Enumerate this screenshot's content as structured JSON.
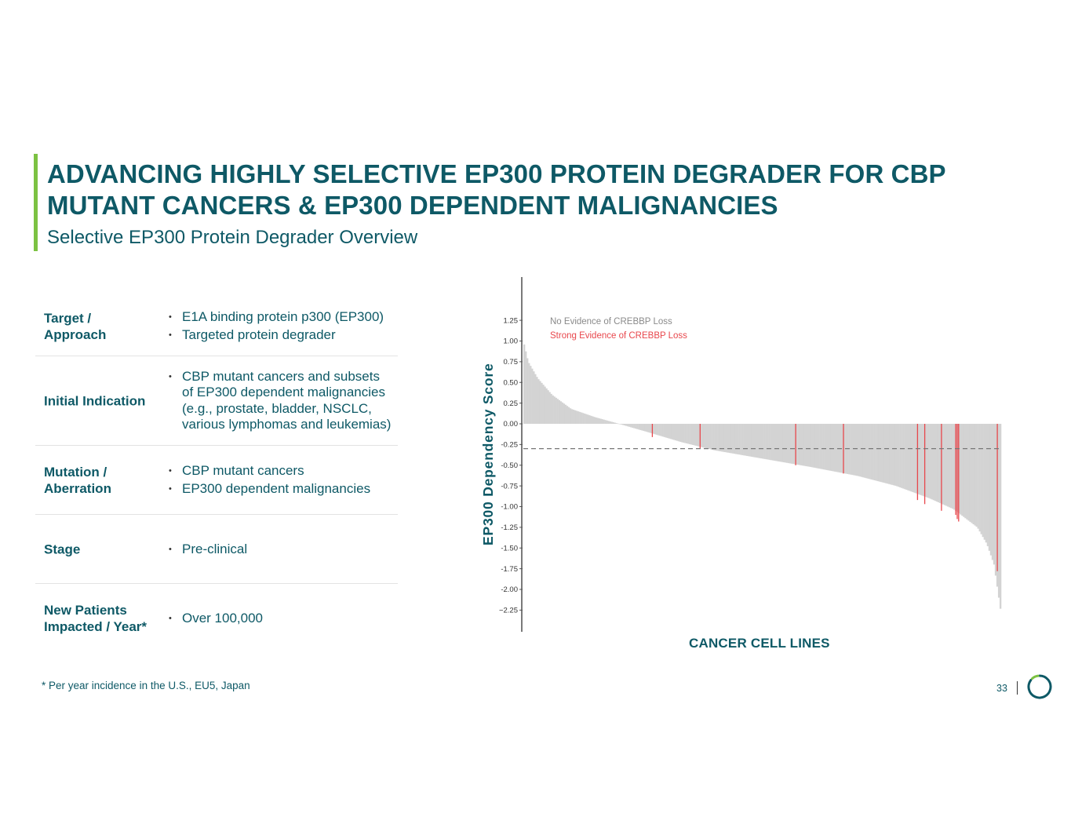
{
  "header": {
    "title": "ADVANCING HIGHLY SELECTIVE EP300 PROTEIN DEGRADER FOR CBP MUTANT CANCERS & EP300 DEPENDENT MALIGNANCIES",
    "subtitle": "Selective EP300 Protein Degrader Overview"
  },
  "colors": {
    "brand": "#0e5966",
    "accent": "#7cc242",
    "bar_default": "#d3d3d3",
    "bar_highlight": "#e8474c"
  },
  "table": {
    "rows": [
      {
        "label": "Target /\nApproach",
        "bullets": [
          "E1A binding protein p300 (EP300)",
          "Targeted protein degrader"
        ]
      },
      {
        "label": "Initial Indication",
        "bullets": [
          "CBP mutant cancers and subsets of EP300 dependent malignancies (e.g., prostate, bladder, NSCLC, various lymphomas and leukemias)"
        ]
      },
      {
        "label": "Mutation /\nAberration",
        "bullets": [
          "CBP mutant cancers",
          "EP300 dependent malignancies"
        ]
      },
      {
        "label": "Stage",
        "bullets": [
          "Pre-clinical"
        ]
      },
      {
        "label": "New Patients\nImpacted / Year*",
        "bullets": [
          "Over 100,000"
        ]
      }
    ]
  },
  "footnote": "* Per year incidence in the U.S., EU5, Japan",
  "page_number": "33",
  "chart_data": {
    "type": "bar",
    "ylabel": "EP300 Dependency Score",
    "xlabel": "CANCER CELL LINES",
    "ylim": [
      -2.5,
      1.75
    ],
    "yticks": [
      "1.25",
      "1.00",
      "0.75",
      "0.50",
      "0.25",
      "0.00",
      "-0.25",
      "-0.50",
      "-0.75",
      "-1.00",
      "-1.25",
      "-1.50",
      "-1.75",
      "-2.00",
      "−2.25"
    ],
    "ytick_values": [
      1.25,
      1.0,
      0.75,
      0.5,
      0.25,
      0.0,
      -0.25,
      -0.5,
      -0.75,
      -1.0,
      -1.25,
      -1.5,
      -1.75,
      -2.0,
      -2.25
    ],
    "reference_line": -0.3,
    "legend": {
      "placement": "top-left",
      "items": [
        {
          "label": "No Evidence of CREBBP Loss",
          "color": "#8a8a8a"
        },
        {
          "label": "Strong Evidence of CREBBP Loss",
          "color": "#e8474c"
        }
      ]
    },
    "sorted_profile": [
      [
        0.0,
        1.0
      ],
      [
        0.01,
        0.75
      ],
      [
        0.03,
        0.55
      ],
      [
        0.06,
        0.35
      ],
      [
        0.1,
        0.18
      ],
      [
        0.15,
        0.08
      ],
      [
        0.2,
        0.0
      ],
      [
        0.26,
        -0.1
      ],
      [
        0.33,
        -0.22
      ],
      [
        0.4,
        -0.32
      ],
      [
        0.5,
        -0.42
      ],
      [
        0.6,
        -0.52
      ],
      [
        0.7,
        -0.63
      ],
      [
        0.78,
        -0.75
      ],
      [
        0.85,
        -0.9
      ],
      [
        0.9,
        -1.03
      ],
      [
        0.95,
        -1.25
      ],
      [
        0.97,
        -1.45
      ],
      [
        0.985,
        -1.7
      ],
      [
        1.0,
        -2.3
      ]
    ],
    "highlighted_bars": [
      {
        "rank": 0.27,
        "value": -0.16
      },
      {
        "rank": 0.37,
        "value": -0.3
      },
      {
        "rank": 0.57,
        "value": -0.5
      },
      {
        "rank": 0.67,
        "value": -0.6
      },
      {
        "rank": 0.825,
        "value": -0.92
      },
      {
        "rank": 0.84,
        "value": -0.97
      },
      {
        "rank": 0.875,
        "value": -1.05
      },
      {
        "rank": 0.905,
        "value": -1.1
      },
      {
        "rank": 0.908,
        "value": -1.15
      },
      {
        "rank": 0.911,
        "value": -1.18
      },
      {
        "rank": 0.992,
        "value": -1.78
      }
    ]
  }
}
